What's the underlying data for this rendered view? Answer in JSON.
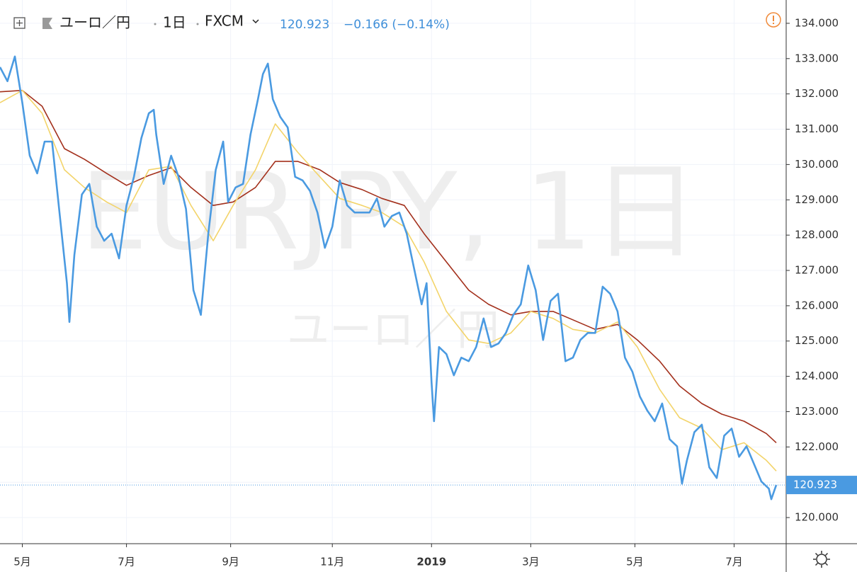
{
  "chart_data": {
    "type": "line",
    "symbol": "ユーロ／円",
    "interval": "1日",
    "source": "FXCM",
    "change_label": "−0.166 (−0.14%)",
    "watermark": "EURJPY, 1日",
    "watermark_sub": "ユーロ／円",
    "x": [
      0,
      3,
      6,
      9,
      12,
      15,
      18,
      21,
      24,
      27,
      28,
      30,
      33,
      36,
      39,
      42,
      45,
      48,
      51,
      54,
      57,
      60,
      62,
      63,
      66,
      69,
      72,
      75,
      78,
      81,
      84,
      87,
      90,
      92,
      95,
      98,
      101,
      104,
      106,
      108,
      110,
      113,
      116,
      119,
      122,
      125,
      128,
      131,
      134,
      137,
      140,
      143,
      146,
      149,
      152,
      155,
      158,
      161,
      164,
      167,
      170,
      172,
      174,
      175,
      177,
      180,
      183,
      186,
      189,
      192,
      195,
      198,
      201,
      204,
      207,
      210,
      213,
      216,
      219,
      222,
      225,
      228,
      231,
      234,
      237,
      240,
      243,
      246,
      249,
      252,
      255,
      258,
      261,
      264,
      267,
      270,
      273,
      275,
      277,
      280,
      283,
      286,
      289,
      292,
      295,
      298,
      301,
      304,
      307,
      310,
      311,
      313
    ],
    "xlim": [
      0,
      317
    ],
    "xticks": [
      {
        "value": 9,
        "label": "5月"
      },
      {
        "value": 51,
        "label": "7月"
      },
      {
        "value": 93,
        "label": "9月"
      },
      {
        "value": 134,
        "label": "11月"
      },
      {
        "value": 174,
        "label": "2019"
      },
      {
        "value": 214,
        "label": "3月"
      },
      {
        "value": 256,
        "label": "5月"
      },
      {
        "value": 296,
        "label": "7月"
      }
    ],
    "ylim": [
      119.26,
      134.66
    ],
    "yticks": [
      {
        "value": 120,
        "label": "120.000"
      },
      {
        "value": 121,
        "label": "121.000"
      },
      {
        "value": 122,
        "label": "122.000"
      },
      {
        "value": 123,
        "label": "123.000"
      },
      {
        "value": 124,
        "label": "124.000"
      },
      {
        "value": 125,
        "label": "125.000"
      },
      {
        "value": 126,
        "label": "126.000"
      },
      {
        "value": 127,
        "label": "127.000"
      },
      {
        "value": 128,
        "label": "128.000"
      },
      {
        "value": 129,
        "label": "129.000"
      },
      {
        "value": 130,
        "label": "130.000"
      },
      {
        "value": 131,
        "label": "131.000"
      },
      {
        "value": 132,
        "label": "132.000"
      },
      {
        "value": 133,
        "label": "133.000"
      },
      {
        "value": 134,
        "label": "134.000"
      }
    ],
    "grid": true,
    "series": [
      {
        "color": "#4a9ae1",
        "values": [
          132.76,
          132.36,
          133.06,
          131.75,
          130.25,
          129.75,
          130.65,
          130.65,
          128.64,
          126.64,
          125.54,
          127.44,
          129.15,
          129.45,
          128.24,
          127.84,
          128.04,
          127.34,
          128.84,
          129.65,
          130.75,
          131.45,
          131.55,
          130.85,
          129.45,
          130.25,
          129.65,
          128.74,
          126.44,
          125.74,
          128.04,
          129.85,
          130.65,
          128.94,
          129.35,
          129.45,
          130.85,
          131.85,
          132.56,
          132.86,
          131.85,
          131.35,
          131.05,
          129.65,
          129.55,
          129.25,
          128.64,
          127.64,
          128.24,
          129.55,
          128.84,
          128.64,
          128.64,
          128.64,
          129.04,
          128.24,
          128.54,
          128.64,
          128.04,
          127.04,
          126.04,
          126.64,
          123.83,
          122.73,
          124.83,
          124.63,
          124.03,
          124.53,
          124.43,
          124.83,
          125.64,
          124.83,
          124.93,
          125.23,
          125.74,
          126.04,
          127.14,
          126.44,
          125.03,
          126.14,
          126.34,
          124.43,
          124.53,
          125.03,
          125.23,
          125.23,
          126.54,
          126.34,
          125.84,
          124.53,
          124.13,
          123.43,
          123.03,
          122.73,
          123.23,
          122.22,
          122.02,
          120.96,
          121.62,
          122.42,
          122.63,
          121.42,
          121.12,
          122.32,
          122.52,
          121.72,
          122.02,
          121.52,
          121.02,
          120.82,
          120.52,
          120.923
        ]
      },
      {
        "color": "#f3d46a",
        "x": [
          0,
          9,
          17,
          26,
          34,
          43,
          51,
          60,
          69,
          77,
          86,
          94,
          103,
          111,
          120,
          129,
          137,
          146,
          154,
          163,
          171,
          180,
          189,
          197,
          206,
          214,
          223,
          231,
          240,
          249,
          257,
          266,
          274,
          283,
          291,
          300,
          309,
          313
        ],
        "values": [
          131.75,
          132.1,
          131.45,
          129.85,
          129.35,
          128.94,
          128.64,
          129.85,
          129.95,
          128.84,
          127.84,
          128.84,
          129.85,
          131.15,
          130.35,
          129.65,
          129.04,
          128.84,
          128.64,
          128.24,
          127.24,
          125.84,
          125.03,
          124.93,
          125.23,
          125.84,
          125.64,
          125.33,
          125.23,
          125.54,
          124.83,
          123.63,
          122.83,
          122.53,
          121.92,
          122.12,
          121.62,
          121.32
        ]
      },
      {
        "color": "#a3301c",
        "x": [
          0,
          9,
          17,
          26,
          34,
          43,
          51,
          60,
          69,
          77,
          86,
          94,
          103,
          111,
          120,
          129,
          137,
          146,
          154,
          163,
          171,
          180,
          189,
          197,
          206,
          214,
          223,
          231,
          240,
          249,
          257,
          266,
          274,
          283,
          291,
          300,
          309,
          313
        ],
        "values": [
          132.06,
          132.1,
          131.65,
          130.45,
          130.15,
          129.75,
          129.41,
          129.69,
          129.91,
          129.35,
          128.84,
          128.94,
          129.35,
          130.09,
          130.09,
          129.85,
          129.49,
          129.29,
          129.04,
          128.84,
          128.04,
          127.24,
          126.44,
          126.04,
          125.74,
          125.84,
          125.84,
          125.6,
          125.33,
          125.47,
          125.03,
          124.43,
          123.73,
          123.23,
          122.93,
          122.73,
          122.38,
          122.12
        ]
      }
    ]
  }
}
